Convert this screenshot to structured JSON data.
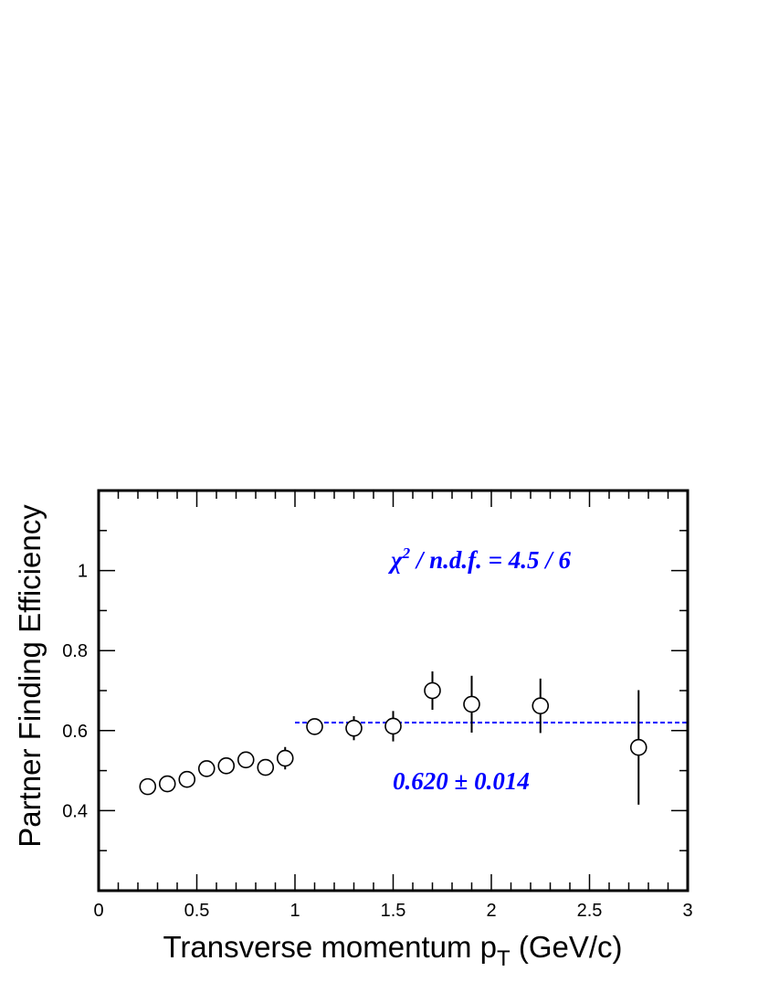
{
  "chart_data": {
    "type": "scatter",
    "xlabel_main": "Transverse momentum p",
    "xlabel_sub": "T",
    "xlabel_tail": " (GeV/c)",
    "ylabel": "Partner Finding Efficiency",
    "xlim": [
      0,
      3
    ],
    "ylim": [
      0.2,
      1.2
    ],
    "x_ticks": [
      {
        "value": 0,
        "label": "0"
      },
      {
        "value": 0.5,
        "label": "0.5"
      },
      {
        "value": 1,
        "label": "1"
      },
      {
        "value": 1.5,
        "label": "1.5"
      },
      {
        "value": 2,
        "label": "2"
      },
      {
        "value": 2.5,
        "label": "2.5"
      },
      {
        "value": 3,
        "label": "3"
      }
    ],
    "y_ticks": [
      {
        "value": 0.4,
        "label": "0.4"
      },
      {
        "value": 0.6,
        "label": "0.6"
      },
      {
        "value": 0.8,
        "label": "0.8"
      },
      {
        "value": 1,
        "label": "1"
      }
    ],
    "x_minor_step": 0.1,
    "y_minor_step": 0.1,
    "points": [
      {
        "x": 0.25,
        "y": 0.46,
        "err": 0.0
      },
      {
        "x": 0.35,
        "y": 0.467,
        "err": 0.0
      },
      {
        "x": 0.45,
        "y": 0.478,
        "err": 0.0
      },
      {
        "x": 0.55,
        "y": 0.505,
        "err": 0.0
      },
      {
        "x": 0.65,
        "y": 0.512,
        "err": 0.0
      },
      {
        "x": 0.75,
        "y": 0.527,
        "err": 0.0
      },
      {
        "x": 0.85,
        "y": 0.508,
        "err": 0.0
      },
      {
        "x": 0.95,
        "y": 0.531,
        "err": 0.028
      },
      {
        "x": 1.1,
        "y": 0.61,
        "err": 0.016
      },
      {
        "x": 1.3,
        "y": 0.606,
        "err": 0.03
      },
      {
        "x": 1.5,
        "y": 0.611,
        "err": 0.038
      },
      {
        "x": 1.7,
        "y": 0.7,
        "err": 0.048
      },
      {
        "x": 1.9,
        "y": 0.666,
        "err": 0.071
      },
      {
        "x": 2.25,
        "y": 0.662,
        "err": 0.068
      },
      {
        "x": 2.75,
        "y": 0.558,
        "err": 0.143
      }
    ],
    "fit": {
      "x_start": 1.0,
      "x_end": 3.0,
      "value": 0.62,
      "error": 0.014,
      "color": "#0000ff"
    },
    "annotations": {
      "chi2_symbol": "χ",
      "chi2_power": "2",
      "chi2_rest": " / n.d.f. = 4.5 / 6",
      "fit_result": "0.620 ± 0.014",
      "color": "#0000ff"
    }
  }
}
